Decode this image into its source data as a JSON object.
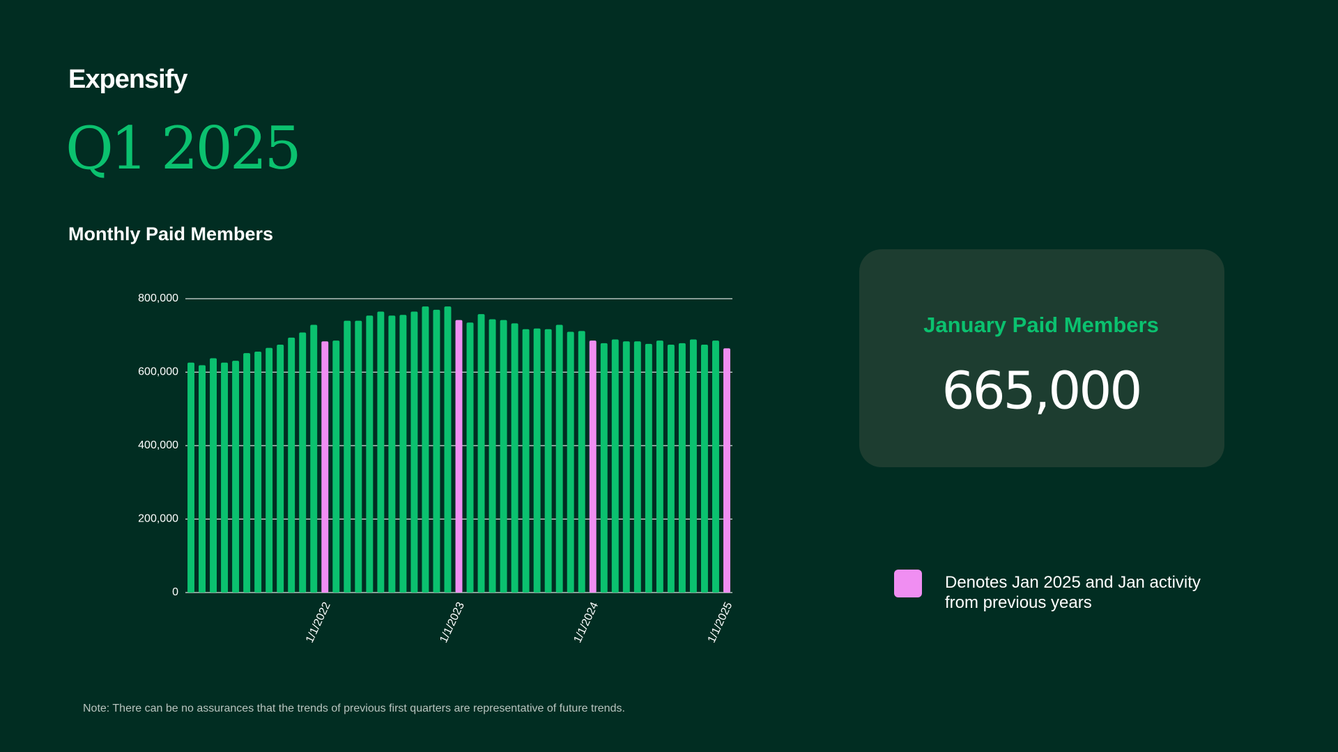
{
  "header": {
    "brand": "Expensify",
    "period": "Q1 2025"
  },
  "chart_data": {
    "type": "bar",
    "title": "Monthly Paid Members",
    "categories": [
      null,
      null,
      null,
      null,
      null,
      null,
      null,
      null,
      null,
      null,
      null,
      null,
      "1/1/2022",
      null,
      null,
      null,
      null,
      null,
      null,
      null,
      null,
      null,
      null,
      null,
      "1/1/2023",
      null,
      null,
      null,
      null,
      null,
      null,
      null,
      null,
      null,
      null,
      null,
      "1/1/2024",
      null,
      null,
      null,
      null,
      null,
      null,
      null,
      null,
      null,
      null,
      null,
      "1/1/2025"
    ],
    "values": [
      626000,
      619000,
      638000,
      626000,
      631000,
      652000,
      656000,
      666000,
      675000,
      694000,
      708000,
      729000,
      684000,
      686000,
      740000,
      740000,
      754000,
      765000,
      754000,
      756000,
      765000,
      779000,
      770000,
      779000,
      742000,
      735000,
      758000,
      744000,
      742000,
      733000,
      717000,
      719000,
      717000,
      729000,
      710000,
      712000,
      686000,
      679000,
      689000,
      684000,
      684000,
      677000,
      686000,
      675000,
      679000,
      689000,
      675000,
      686000,
      665000
    ],
    "colors": [
      "#0bc16f",
      "#0bc16f",
      "#0bc16f",
      "#0bc16f",
      "#0bc16f",
      "#0bc16f",
      "#0bc16f",
      "#0bc16f",
      "#0bc16f",
      "#0bc16f",
      "#0bc16f",
      "#0bc16f",
      "#f08ef2",
      "#0bc16f",
      "#0bc16f",
      "#0bc16f",
      "#0bc16f",
      "#0bc16f",
      "#0bc16f",
      "#0bc16f",
      "#0bc16f",
      "#0bc16f",
      "#0bc16f",
      "#0bc16f",
      "#f08ef2",
      "#0bc16f",
      "#0bc16f",
      "#0bc16f",
      "#0bc16f",
      "#0bc16f",
      "#0bc16f",
      "#0bc16f",
      "#0bc16f",
      "#0bc16f",
      "#0bc16f",
      "#0bc16f",
      "#f08ef2",
      "#0bc16f",
      "#0bc16f",
      "#0bc16f",
      "#0bc16f",
      "#0bc16f",
      "#0bc16f",
      "#0bc16f",
      "#0bc16f",
      "#0bc16f",
      "#0bc16f",
      "#0bc16f",
      "#f08ef2"
    ],
    "ylim": [
      0,
      800000
    ],
    "yticks": [
      {
        "value": 0,
        "label": "0"
      },
      {
        "value": 200000,
        "label": "200,000"
      },
      {
        "value": 400000,
        "label": "400,000"
      },
      {
        "value": 600000,
        "label": "600,000"
      },
      {
        "value": 800000,
        "label": "800,000"
      }
    ],
    "grid": true,
    "legend": {
      "text": "Denotes Jan 2025 and Jan activity from previous years",
      "color": "#f08ef2"
    }
  },
  "card": {
    "title": "January Paid Members",
    "value": "665,000"
  },
  "note": "Note: There can be no assurances that the trends of previous first quarters are representative of future trends."
}
